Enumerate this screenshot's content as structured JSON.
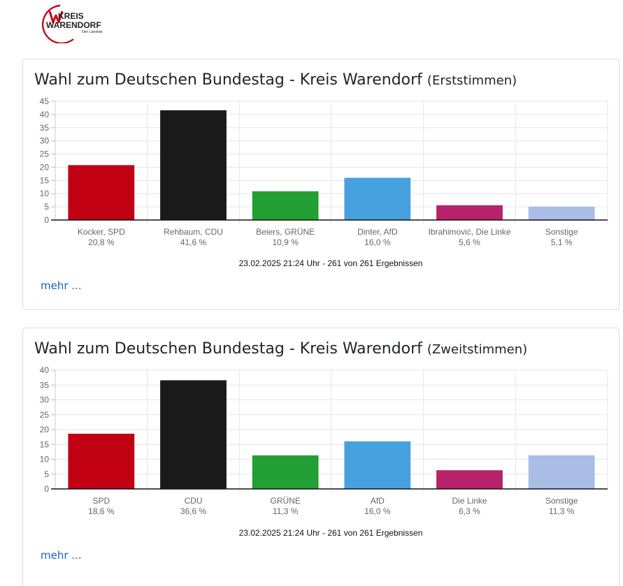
{
  "logo": {
    "line1": "KREIS",
    "line2": "WARENDORF",
    "line3": "Der Landrat",
    "colors": {
      "red": "#c40a1a",
      "dark": "#222222",
      "arc": "#c40a1a"
    }
  },
  "cards": [
    {
      "title": "Wahl zum Deutschen Bundestag - Kreis Warendorf",
      "subtitle": "(Erststimmen)",
      "footnote": "23.02.2025 21:24 Uhr - 261 von 261 Ergebnissen",
      "more_label": "mehr ..."
    },
    {
      "title": "Wahl zum Deutschen Bundestag - Kreis Warendorf",
      "subtitle": "(Zweitstimmen)",
      "footnote": "23.02.2025 21:24 Uhr - 261 von 261 Ergebnissen",
      "more_label": "mehr ..."
    }
  ],
  "chart_data": [
    {
      "type": "bar",
      "title": "Wahl zum Deutschen Bundestag - Kreis Warendorf (Erststimmen)",
      "categories": [
        "Kocker, SPD",
        "Rehbaum, CDU",
        "Beiers, GRÜNE",
        "Dinter, AfD",
        "Ibrahimović, Die Linke",
        "Sonstige"
      ],
      "value_labels": [
        "20,8 %",
        "41,6 %",
        "10,9 %",
        "16,0 %",
        "5,6 %",
        "5,1 %"
      ],
      "values": [
        20.8,
        41.6,
        10.9,
        16.0,
        5.6,
        5.1
      ],
      "colors": [
        "#c10014",
        "#1a1a1a",
        "#22a033",
        "#47a1df",
        "#b7236a",
        "#a9bde6"
      ],
      "ylim": [
        0,
        45
      ],
      "yticks": [
        "0",
        "5",
        "10",
        "15",
        "20",
        "25",
        "30",
        "35",
        "40",
        "45"
      ],
      "grid": true,
      "legend": "none"
    },
    {
      "type": "bar",
      "title": "Wahl zum Deutschen Bundestag - Kreis Warendorf (Zweitstimmen)",
      "categories": [
        "SPD",
        "CDU",
        "GRÜNE",
        "AfD",
        "Die Linke",
        "Sonstige"
      ],
      "value_labels": [
        "18,6 %",
        "36,6 %",
        "11,3 %",
        "16,0 %",
        "6,3 %",
        "11,3 %"
      ],
      "values": [
        18.6,
        36.6,
        11.3,
        16.0,
        6.3,
        11.3
      ],
      "colors": [
        "#c10014",
        "#1a1a1a",
        "#22a033",
        "#47a1df",
        "#b7236a",
        "#a9bde6"
      ],
      "ylim": [
        0,
        40
      ],
      "yticks": [
        "0",
        "5",
        "10",
        "15",
        "20",
        "25",
        "30",
        "35",
        "40"
      ],
      "grid": true,
      "legend": "none"
    }
  ]
}
